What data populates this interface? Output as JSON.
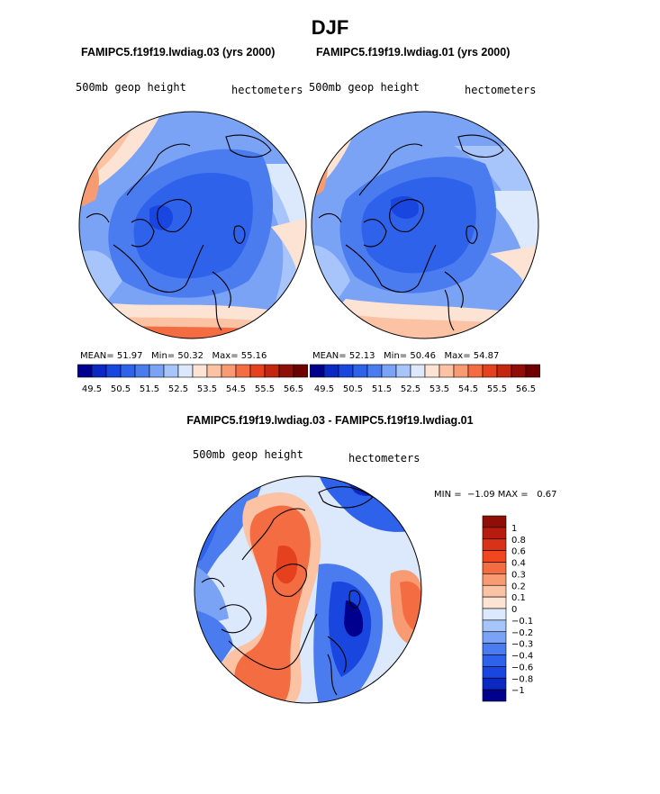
{
  "page": {
    "title": "DJF"
  },
  "panels": [
    {
      "case_title": "FAMIPC5.f19f19.lwdiag.03 (yrs 2000)",
      "field_label": "500mb geop height",
      "units_label": "hectometers",
      "stats": {
        "mean_label": "MEAN=",
        "mean": "51.97",
        "min_label": "Min=",
        "min": "50.32",
        "max_label": "Max=",
        "max": "55.16"
      }
    },
    {
      "case_title": "FAMIPC5.f19f19.lwdiag.01 (yrs 2000)",
      "field_label": "500mb geop height",
      "units_label": "hectometers",
      "stats": {
        "mean_label": "MEAN=",
        "mean": "52.13",
        "min_label": "Min=",
        "min": "50.46",
        "max_label": "Max=",
        "max": "54.87"
      }
    }
  ],
  "diff_panel": {
    "title": "FAMIPC5.f19f19.lwdiag.03 - FAMIPC5.f19f19.lwdiag.01",
    "field_label": "500mb geop height",
    "units_label": "hectometers",
    "minmax_text": "MIN =  −1.09 MAX =   0.67"
  },
  "chart_data": [
    {
      "type": "heatmap",
      "projection": "north-polar-stereographic",
      "title": "FAMIPC5.f19f19.lwdiag.03 (yrs 2000)",
      "field": "500mb geop height",
      "units": "hectometers",
      "mean": 51.97,
      "min": 50.32,
      "max": 55.16,
      "colorbar": {
        "orientation": "horizontal",
        "levels": [
          49.5,
          50.0,
          50.5,
          51.0,
          51.5,
          52.0,
          52.5,
          53.0,
          53.5,
          54.0,
          54.5,
          55.0,
          55.5,
          56.0,
          56.5
        ],
        "tick_labels": [
          "49.5",
          "50.5",
          "51.5",
          "52.5",
          "53.5",
          "54.5",
          "55.5",
          "56.5"
        ],
        "colors": [
          "#00008c",
          "#0b28c3",
          "#1a46e0",
          "#2e62ea",
          "#4a7cf0",
          "#7aa3f5",
          "#a7c5fa",
          "#dce9fc",
          "#fde3d4",
          "#fbc2a4",
          "#f99b72",
          "#f46c42",
          "#e5411e",
          "#c4260f",
          "#8f0e07",
          "#6e0000"
        ]
      }
    },
    {
      "type": "heatmap",
      "projection": "north-polar-stereographic",
      "title": "FAMIPC5.f19f19.lwdiag.01 (yrs 2000)",
      "field": "500mb geop height",
      "units": "hectometers",
      "mean": 52.13,
      "min": 50.46,
      "max": 54.87,
      "colorbar": {
        "orientation": "horizontal",
        "levels": [
          49.5,
          50.0,
          50.5,
          51.0,
          51.5,
          52.0,
          52.5,
          53.0,
          53.5,
          54.0,
          54.5,
          55.0,
          55.5,
          56.0,
          56.5
        ],
        "tick_labels": [
          "49.5",
          "50.5",
          "51.5",
          "52.5",
          "53.5",
          "54.5",
          "55.5",
          "56.5"
        ],
        "colors": [
          "#00008c",
          "#0b28c3",
          "#1a46e0",
          "#2e62ea",
          "#4a7cf0",
          "#7aa3f5",
          "#a7c5fa",
          "#dce9fc",
          "#fde3d4",
          "#fbc2a4",
          "#f99b72",
          "#f46c42",
          "#e5411e",
          "#c4260f",
          "#8f0e07",
          "#6e0000"
        ]
      }
    },
    {
      "type": "heatmap",
      "projection": "north-polar-stereographic",
      "title": "FAMIPC5.f19f19.lwdiag.03 - FAMIPC5.f19f19.lwdiag.01",
      "field": "500mb geop height",
      "units": "hectometers",
      "min": -1.09,
      "max": 0.67,
      "colorbar": {
        "orientation": "vertical",
        "levels": [
          1,
          0.8,
          0.6,
          0.4,
          0.3,
          0.2,
          0.1,
          0,
          -0.1,
          -0.2,
          -0.3,
          -0.4,
          -0.6,
          -0.8,
          -1
        ],
        "tick_labels": [
          "1",
          "0.8",
          "0.6",
          "0.4",
          "0.3",
          "0.2",
          "0.1",
          "0",
          "−0.1",
          "−0.2",
          "−0.3",
          "−0.4",
          "−0.6",
          "−0.8",
          "−1"
        ],
        "colors": [
          "#8f0e07",
          "#b81c0e",
          "#d93218",
          "#f0471f",
          "#f46c42",
          "#f99b72",
          "#fbc2a4",
          "#fde3d4",
          "#dce9fc",
          "#a7c5fa",
          "#7aa3f5",
          "#4a7cf0",
          "#2e62ea",
          "#1a46e0",
          "#0b28c3",
          "#00008c"
        ]
      }
    }
  ]
}
